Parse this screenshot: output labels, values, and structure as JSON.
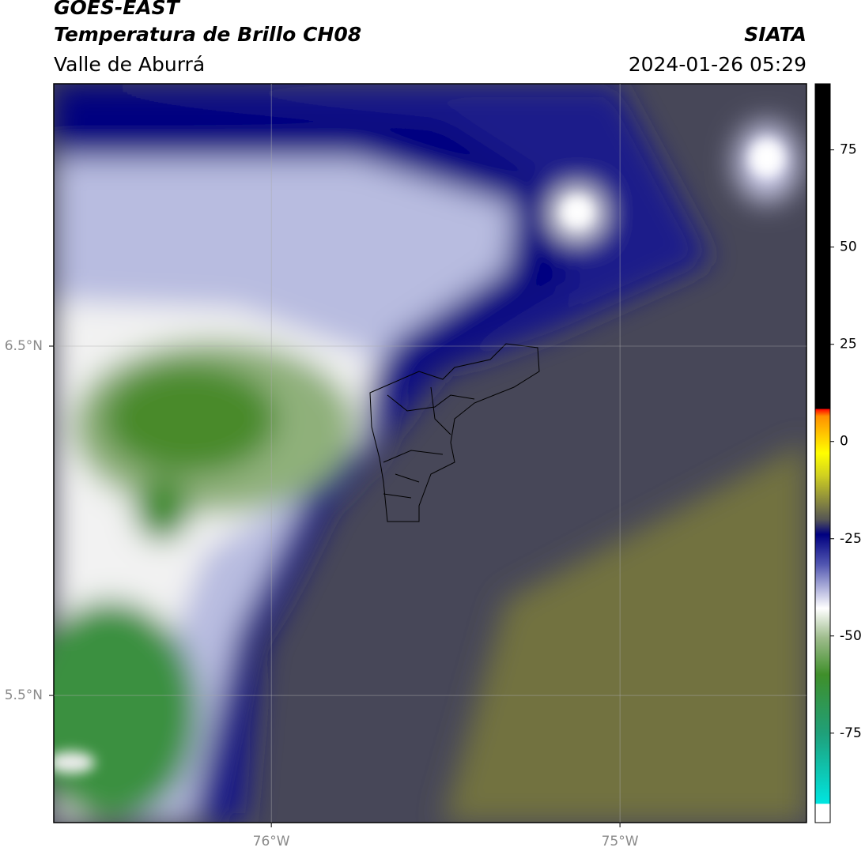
{
  "header": {
    "title": "GOES-EAST",
    "subtitle": "Temperatura de Brillo CH08",
    "region": "Valle de Aburrá",
    "source": "SIATA",
    "datetime": "2024-01-26 05:29"
  },
  "map": {
    "xlim": [
      -76.624,
      -74.465
    ],
    "ylim": [
      5.136,
      7.251
    ],
    "xticks": [
      {
        "value": -76,
        "label": "76°W"
      },
      {
        "value": -75,
        "label": "75°W"
      }
    ],
    "yticks": [
      {
        "value": 6.5,
        "label": "6.5°N"
      },
      {
        "value": 5.5,
        "label": "5.5°N"
      }
    ],
    "grid": true
  },
  "colorbar": {
    "clim": [
      -98,
      92
    ],
    "ticks": [
      75,
      50,
      25,
      0,
      -25,
      -50,
      -75
    ]
  }
}
